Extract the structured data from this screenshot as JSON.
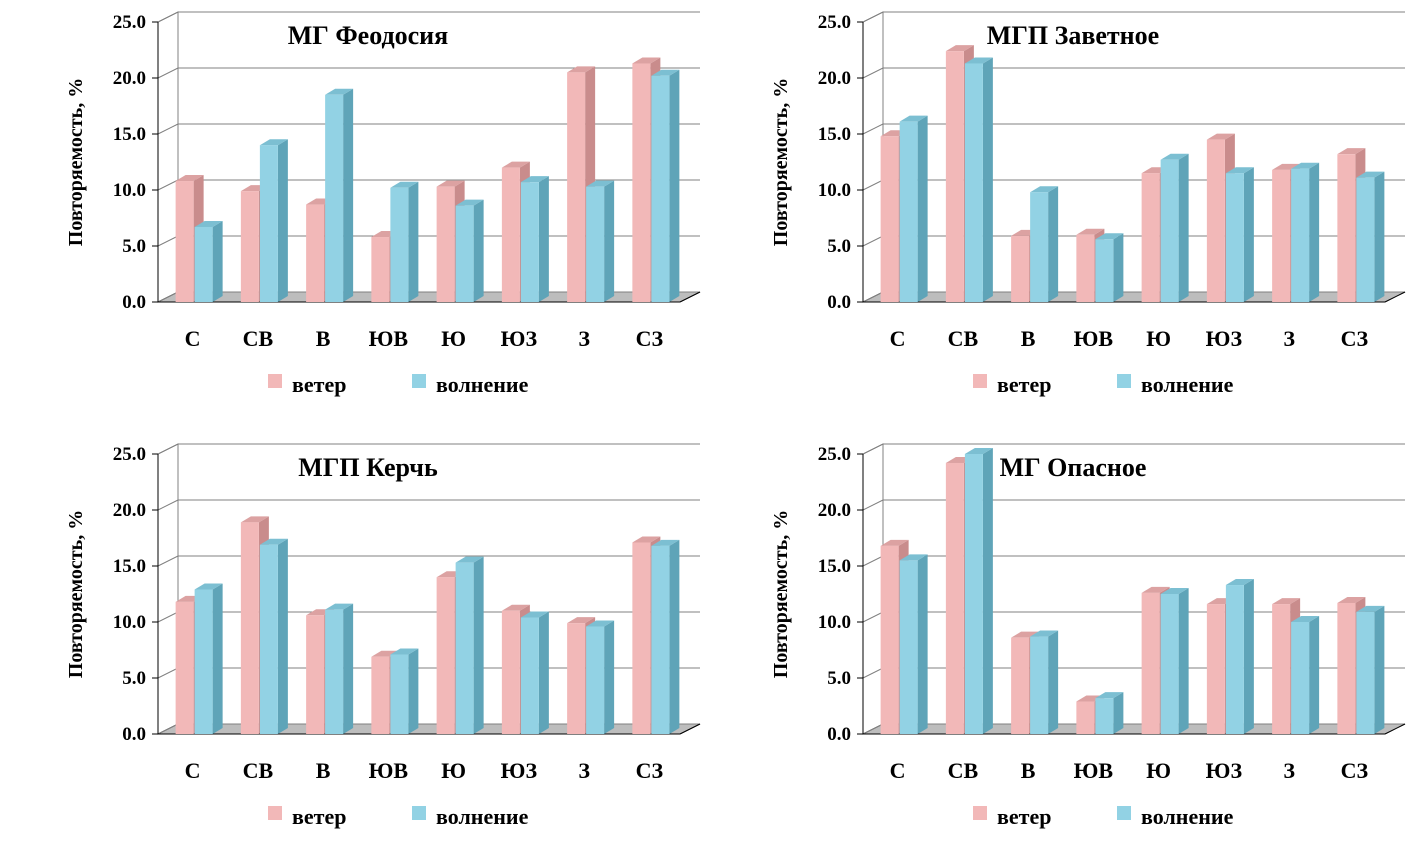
{
  "colors": {
    "wind_front": "#f2b8b8",
    "wind_side": "#c98c8c",
    "wind_top": "#dca2a2",
    "wave_front": "#92d2e4",
    "wave_side": "#5fa4b8",
    "wave_top": "#7cbfd2",
    "grid": "#808080",
    "floor": "#bdbdbd"
  },
  "chart_data": [
    {
      "type": "bar",
      "title": "МГ Феодосия",
      "ylabel": "Повторяемость, %",
      "xlabel": "",
      "ylim": [
        0,
        25
      ],
      "yticks": [
        "0.0",
        "5.0",
        "10.0",
        "15.0",
        "20.0",
        "25.0"
      ],
      "grid": true,
      "legend_position": "bottom",
      "categories": [
        "С",
        "СВ",
        "В",
        "ЮВ",
        "Ю",
        "ЮЗ",
        "З",
        "СЗ"
      ],
      "series": [
        {
          "name": "ветер",
          "values": [
            10.8,
            9.9,
            8.7,
            5.8,
            10.3,
            12.0,
            20.5,
            21.3
          ]
        },
        {
          "name": "волнение",
          "values": [
            6.7,
            14.0,
            18.5,
            10.2,
            8.6,
            10.7,
            10.3,
            20.2
          ]
        }
      ]
    },
    {
      "type": "bar",
      "title": "МГП Заветное",
      "ylabel": "Повторяемость, %",
      "xlabel": "",
      "ylim": [
        0,
        25
      ],
      "yticks": [
        "0.0",
        "5.0",
        "10.0",
        "15.0",
        "20.0",
        "25.0"
      ],
      "grid": true,
      "legend_position": "bottom",
      "categories": [
        "С",
        "СВ",
        "В",
        "ЮВ",
        "Ю",
        "ЮЗ",
        "З",
        "СЗ"
      ],
      "series": [
        {
          "name": "ветер",
          "values": [
            14.8,
            22.4,
            5.9,
            6.0,
            11.5,
            14.5,
            11.8,
            13.2
          ]
        },
        {
          "name": "волнение",
          "values": [
            16.1,
            21.3,
            9.8,
            5.6,
            12.7,
            11.5,
            11.9,
            11.1
          ]
        }
      ]
    },
    {
      "type": "bar",
      "title": "МГП Керчь",
      "ylabel": "Повторяемость, %",
      "xlabel": "",
      "ylim": [
        0,
        25
      ],
      "yticks": [
        "0.0",
        "5.0",
        "10.0",
        "15.0",
        "20.0",
        "25.0"
      ],
      "grid": true,
      "legend_position": "bottom",
      "categories": [
        "С",
        "СВ",
        "В",
        "ЮВ",
        "Ю",
        "ЮЗ",
        "З",
        "СЗ"
      ],
      "series": [
        {
          "name": "ветер",
          "values": [
            11.8,
            18.9,
            10.6,
            6.9,
            14.0,
            11.0,
            9.9,
            17.1
          ]
        },
        {
          "name": "волнение",
          "values": [
            12.9,
            16.9,
            11.1,
            7.1,
            15.3,
            10.4,
            9.6,
            16.8
          ]
        }
      ]
    },
    {
      "type": "bar",
      "title": "МГ Опасное",
      "ylabel": "Повторяемость, %",
      "xlabel": "",
      "ylim": [
        0,
        25
      ],
      "yticks": [
        "0.0",
        "5.0",
        "10.0",
        "15.0",
        "20.0",
        "25.0"
      ],
      "grid": true,
      "legend_position": "bottom",
      "categories": [
        "С",
        "СВ",
        "В",
        "ЮВ",
        "Ю",
        "ЮЗ",
        "З",
        "СЗ"
      ],
      "series": [
        {
          "name": "ветер",
          "values": [
            16.8,
            24.2,
            8.6,
            2.9,
            12.6,
            11.6,
            11.6,
            11.7
          ]
        },
        {
          "name": "волнение",
          "values": [
            15.5,
            25.0,
            8.7,
            3.2,
            12.5,
            13.3,
            10.0,
            10.9
          ]
        }
      ]
    }
  ]
}
